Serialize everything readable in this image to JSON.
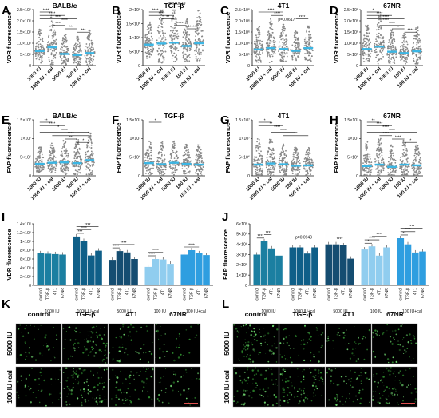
{
  "chart_data": [
    {
      "id": "A",
      "type": "scatter",
      "title": "BALB/c",
      "ylabel": "VDR fluorescence",
      "yticks": [
        "0",
        "5×10⁵",
        "1.0×10⁶",
        "1.5×10⁶",
        "2.0×10⁶",
        "2.5×10⁶"
      ],
      "ylim": [
        0,
        2500000
      ],
      "categories": [
        "1000 IU",
        "1000 IU + cal",
        "5000 IU",
        "100 IU",
        "100 IU + cal"
      ],
      "means": [
        650000,
        820000,
        520000,
        470000,
        560000
      ],
      "spread": [
        1000000,
        1500000,
        900000,
        850000,
        1050000
      ],
      "stats": [
        {
          "a": 0,
          "b": 1,
          "t": "****"
        },
        {
          "a": 0,
          "b": 2,
          "t": "****"
        },
        {
          "a": 0,
          "b": 3,
          "t": "****"
        },
        {
          "a": 0,
          "b": 4,
          "t": "****"
        },
        {
          "a": 1,
          "b": 2,
          "t": "****"
        },
        {
          "a": 2,
          "b": 3,
          "t": "**"
        },
        {
          "a": 3,
          "b": 4,
          "t": "***"
        }
      ]
    },
    {
      "id": "B",
      "type": "scatter",
      "title": "TGF-β",
      "ylabel": "VDR fluorescence",
      "annotation": "p=0.0619",
      "yticks": [
        "0",
        "5×10⁵",
        "1×10⁶",
        "1.5×10⁶",
        "2×10⁶"
      ],
      "ylim": [
        0,
        2000000
      ],
      "categories": [
        "1000 IU",
        "1000 IU + cal",
        "5000 IU",
        "100 IU",
        "100 IU + cal"
      ],
      "means": [
        750000,
        790000,
        820000,
        700000,
        800000
      ],
      "spread": [
        900000,
        1300000,
        1250000,
        1000000,
        1200000
      ],
      "stats": [
        {
          "a": 0,
          "b": 1,
          "t": "****"
        },
        {
          "a": 0,
          "b": 2,
          "t": "****"
        },
        {
          "a": 1,
          "b": 2,
          "t": "**"
        },
        {
          "a": 1,
          "b": 3,
          "t": "****"
        },
        {
          "a": 2,
          "b": 3,
          "t": "****"
        },
        {
          "a": 3,
          "b": 4,
          "t": "****"
        }
      ]
    },
    {
      "id": "C",
      "type": "scatter",
      "title": "4T1",
      "ylabel": "VDR fluorescence",
      "annotation": "p=0.0617",
      "yticks": [
        "0",
        "5×10⁵",
        "1.0×10⁶",
        "1.5×10⁶",
        "2.0×10⁶",
        "2.5×10⁶"
      ],
      "ylim": [
        0,
        2500000
      ],
      "categories": [
        "1000 IU",
        "1000 IU + cal",
        "5000 IU",
        "100 IU",
        "100 IU + cal"
      ],
      "means": [
        720000,
        780000,
        740000,
        660000,
        780000
      ],
      "spread": [
        1050000,
        1300000,
        1100000,
        900000,
        1050000
      ],
      "stats": [
        {
          "a": 0,
          "b": 2,
          "t": "****"
        },
        {
          "a": 1,
          "b": 2,
          "t": "****"
        },
        {
          "a": 3,
          "b": 4,
          "t": "****"
        }
      ]
    },
    {
      "id": "D",
      "type": "scatter",
      "title": "67NR",
      "ylabel": "VDR fluorescence",
      "yticks": [
        "0",
        "5×10⁵",
        "1.0×10⁶",
        "1.5×10⁶",
        "2.0×10⁶",
        "2.5×10⁶"
      ],
      "ylim": [
        0,
        2500000
      ],
      "categories": [
        "1000 IU",
        "1000 IU + cal",
        "5000 IU",
        "100 IU",
        "100 IU + cal"
      ],
      "means": [
        740000,
        850000,
        620000,
        560000,
        640000
      ],
      "spread": [
        1100000,
        1400000,
        1000000,
        900000,
        1100000
      ],
      "stats": [
        {
          "a": 0,
          "b": 1,
          "t": "*"
        },
        {
          "a": 0,
          "b": 2,
          "t": "****"
        },
        {
          "a": 0,
          "b": 3,
          "t": "****"
        },
        {
          "a": 1,
          "b": 2,
          "t": "****"
        },
        {
          "a": 1,
          "b": 3,
          "t": "****"
        },
        {
          "a": 2,
          "b": 3,
          "t": "*"
        },
        {
          "a": 3,
          "b": 4,
          "t": "****"
        }
      ]
    },
    {
      "id": "E",
      "type": "scatter",
      "title": "BALB/c",
      "ylabel": "FAP fluorescence",
      "yticks": [
        "0",
        "5×10⁶",
        "1×10⁷",
        "1.5×10⁷"
      ],
      "ylim": [
        0,
        15000000
      ],
      "categories": [
        "1000 IU",
        "1000 IU + cal",
        "5000 IU",
        "100 IU",
        "100 IU + cal"
      ],
      "means": [
        3200000,
        3500000,
        3600000,
        3400000,
        4200000
      ],
      "spread": [
        4500000,
        5500000,
        6000000,
        6500000,
        7500000
      ],
      "stats": [
        {
          "a": 0,
          "b": 1,
          "t": "**"
        },
        {
          "a": 0,
          "b": 2,
          "t": "****"
        },
        {
          "a": 0,
          "b": 3,
          "t": "*"
        },
        {
          "a": 0,
          "b": 4,
          "t": "****"
        },
        {
          "a": 1,
          "b": 4,
          "t": "****"
        },
        {
          "a": 2,
          "b": 3,
          "t": "**"
        },
        {
          "a": 3,
          "b": 4,
          "t": "*"
        }
      ]
    },
    {
      "id": "F",
      "type": "scatter",
      "title": "TGF-β",
      "ylabel": "FAP fluorescence",
      "yticks": [
        "0",
        "5×10⁶",
        "1×10⁷",
        "1.5×10⁷"
      ],
      "ylim": [
        0,
        15000000
      ],
      "categories": [
        "1000 IU",
        "1000 IU + cal",
        "5000 IU",
        "100 IU",
        "100 IU + cal"
      ],
      "means": [
        3400000,
        3100000,
        3500000,
        3200000,
        3000000
      ],
      "spread": [
        6500000,
        6000000,
        6000000,
        5500000,
        5500000
      ],
      "stats": [
        {
          "a": 0,
          "b": 1,
          "t": "*"
        }
      ]
    },
    {
      "id": "G",
      "type": "scatter",
      "title": "4T1",
      "ylabel": "FAP fluorescence",
      "yticks": [
        "0",
        "5×10⁶",
        "1×10⁷",
        "1.5×10⁷"
      ],
      "ylim": [
        0,
        15000000
      ],
      "categories": [
        "1000 IU",
        "1000 IU + cal",
        "5000 IU",
        "100 IU",
        "100 IU + cal"
      ],
      "means": [
        3000000,
        3300000,
        3100000,
        2700000,
        2800000
      ],
      "spread": [
        7000000,
        6500000,
        5500000,
        5000000,
        5000000
      ],
      "stats": [
        {
          "a": 0,
          "b": 1,
          "t": "*"
        },
        {
          "a": 0,
          "b": 2,
          "t": "**"
        },
        {
          "a": 1,
          "b": 2,
          "t": "****"
        },
        {
          "a": 1,
          "b": 3,
          "t": "****"
        },
        {
          "a": 2,
          "b": 4,
          "t": "**"
        }
      ]
    },
    {
      "id": "H",
      "type": "scatter",
      "title": "67NR",
      "ylabel": "FAP fluorescence",
      "yticks": [
        "0",
        "5×10⁶",
        "1×10⁷",
        "1.5×10⁷"
      ],
      "ylim": [
        0,
        15000000
      ],
      "categories": [
        "1000 IU",
        "1000 IU + cal",
        "5000 IU",
        "100 IU",
        "100 IU + cal"
      ],
      "means": [
        2600000,
        3000000,
        2400000,
        3000000,
        2800000
      ],
      "spread": [
        6500000,
        7000000,
        6000000,
        6500000,
        5500000
      ],
      "stats": [
        {
          "a": 0,
          "b": 1,
          "t": "**"
        },
        {
          "a": 0,
          "b": 2,
          "t": "****"
        },
        {
          "a": 0,
          "b": 3,
          "t": "****"
        },
        {
          "a": 0,
          "b": 4,
          "t": "****"
        },
        {
          "a": 1,
          "b": 2,
          "t": "****"
        },
        {
          "a": 2,
          "b": 3,
          "t": "****"
        },
        {
          "a": 3,
          "b": 4,
          "t": "*"
        }
      ]
    },
    {
      "id": "I",
      "type": "bar",
      "ylabel": "VDR fluorescence",
      "yticks": [
        "0",
        "2×10⁵",
        "4×10⁵",
        "6×10⁵",
        "8×10⁵",
        "1×10⁶",
        "1.2×10⁶",
        "1.4×10⁶"
      ],
      "ylim": [
        0,
        1400000
      ],
      "group_labels": [
        "1000 IU",
        "1000 IU+cal",
        "5000 IU",
        "100 IU",
        "100 IU+cal"
      ],
      "bar_labels": [
        "control",
        "TGF-β",
        "4T1",
        "67NR"
      ],
      "group_colors": [
        "#1b7fa1",
        "#0f5f88",
        "#154d71",
        "#90cdef",
        "#2e9ee0"
      ],
      "values": [
        [
          730000,
          720000,
          710000,
          700000
        ],
        [
          1110000,
          1010000,
          680000,
          790000
        ],
        [
          580000,
          780000,
          750000,
          600000
        ],
        [
          420000,
          600000,
          590000,
          490000
        ],
        [
          700000,
          800000,
          730000,
          690000
        ]
      ],
      "stats": [
        {
          "g": 1,
          "a": 0,
          "b": 1,
          "t": "***"
        },
        {
          "g": 1,
          "a": 0,
          "b": 2,
          "t": "****"
        },
        {
          "g": 1,
          "a": 0,
          "b": 3,
          "t": "****"
        },
        {
          "g": 2,
          "a": 0,
          "b": 1,
          "t": "****"
        },
        {
          "g": 2,
          "a": 0,
          "b": 3,
          "t": "****"
        },
        {
          "g": 3,
          "a": 0,
          "b": 1,
          "t": "****"
        },
        {
          "g": 3,
          "a": 0,
          "b": 2,
          "t": "****"
        },
        {
          "g": 4,
          "a": 0,
          "b": 2,
          "t": "****"
        }
      ]
    },
    {
      "id": "J",
      "type": "bar",
      "ylabel": "FAP fluorescence",
      "annotation": "p=0.0949",
      "yticks": [
        "0",
        "1×10⁶",
        "2×10⁶",
        "3×10⁶",
        "4×10⁶",
        "5×10⁶",
        "6×10⁶"
      ],
      "ylim": [
        0,
        6000000
      ],
      "group_labels": [
        "1000 IU",
        "1000 IU+cal",
        "5000 IU",
        "100 IU",
        "100 IU+cal"
      ],
      "bar_labels": [
        "control",
        "TGF-β",
        "4T1",
        "67NR"
      ],
      "group_colors": [
        "#1b7fa1",
        "#0f5f88",
        "#154d71",
        "#90cdef",
        "#2e9ee0"
      ],
      "values": [
        [
          3000000,
          4300000,
          3600000,
          2900000
        ],
        [
          3700000,
          3700000,
          3100000,
          3700000
        ],
        [
          4000000,
          4000000,
          3900000,
          2600000
        ],
        [
          3500000,
          3800000,
          2900000,
          3700000
        ],
        [
          4600000,
          4000000,
          3200000,
          3300000
        ]
      ],
      "stats": [
        {
          "g": 0,
          "a": 0,
          "b": 1,
          "t": "****"
        },
        {
          "g": 0,
          "a": 1,
          "b": 2,
          "t": "***"
        },
        {
          "g": 2,
          "a": 0,
          "b": 3,
          "t": "****"
        },
        {
          "g": 3,
          "a": 0,
          "b": 1,
          "t": "*"
        },
        {
          "g": 3,
          "a": 0,
          "b": 2,
          "t": "****"
        },
        {
          "g": 3,
          "a": 1,
          "b": 3,
          "t": "****"
        },
        {
          "g": 4,
          "a": 0,
          "b": 1,
          "t": "**"
        },
        {
          "g": 4,
          "a": 0,
          "b": 2,
          "t": "****"
        },
        {
          "g": 4,
          "a": 0,
          "b": 3,
          "t": "****"
        }
      ]
    }
  ],
  "panel_letters": [
    "A",
    "B",
    "C",
    "D",
    "E",
    "F",
    "G",
    "H",
    "I",
    "J",
    "K",
    "L"
  ],
  "micrographs": {
    "K": {
      "columns": [
        "control",
        "TGF-β",
        "4T1",
        "67NR"
      ],
      "rows": [
        "5000 IU",
        "100 IU+cal"
      ],
      "density": [
        [
          0.15,
          0.45,
          0.25,
          0.1
        ],
        [
          0.2,
          0.55,
          0.35,
          0.2
        ]
      ]
    },
    "L": {
      "columns": [
        "control",
        "TGF-β",
        "4T1",
        "67NR"
      ],
      "rows": [
        "5000 IU",
        "100 IU+cal"
      ],
      "density": [
        [
          0.5,
          0.25,
          0.15,
          0.3
        ],
        [
          0.4,
          0.55,
          0.3,
          0.4
        ]
      ]
    }
  },
  "colors": {
    "dots": "#888888",
    "mean": "#3bb6e4",
    "stat": "#111111"
  }
}
